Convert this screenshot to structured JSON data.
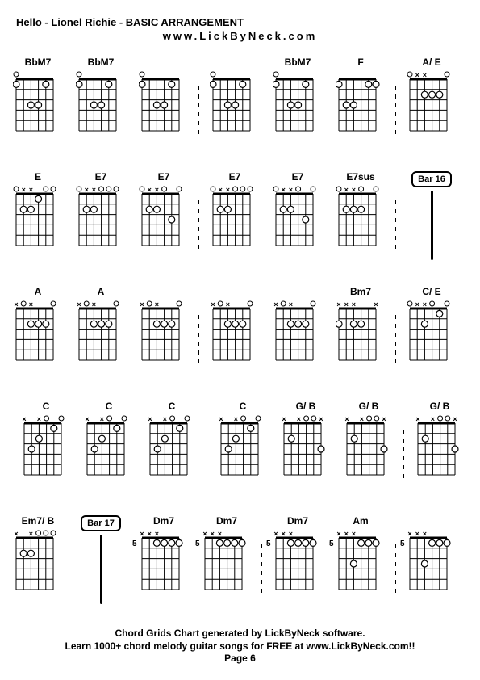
{
  "title": "Hello - Lionel Richie  - BASIC ARRANGEMENT",
  "subtitle": "www.LickByNeck.com",
  "footer_line1": "Chord Grids Chart generated by LickByNeck software.",
  "footer_line2": "Learn 1000+ chord melody guitar songs for FREE at www.LickByNeck.com!!",
  "footer_page": "Page 6",
  "fretboard": {
    "strings": 6,
    "frets": 5,
    "width": 54,
    "height": 80,
    "line_color": "#000000",
    "dot_fill": "#ffffff",
    "dot_stroke": "#000000",
    "x_mark": "×"
  },
  "rows": [
    {
      "cells": [
        {
          "type": "chord",
          "label": "BbM7",
          "top": [
            "o",
            "",
            "",
            "",
            "",
            ""
          ],
          "dots": [
            [
              1,
              1
            ],
            [
              3,
              3
            ],
            [
              3,
              4
            ],
            [
              1,
              5
            ]
          ]
        },
        {
          "type": "chord",
          "label": "BbM7",
          "top": [
            "o",
            "",
            "",
            "",
            "",
            ""
          ],
          "dots": [
            [
              1,
              1
            ],
            [
              3,
              3
            ],
            [
              3,
              4
            ],
            [
              1,
              5
            ]
          ]
        },
        {
          "type": "chord",
          "label": "",
          "top": [
            "o",
            "",
            "",
            "",
            "",
            ""
          ],
          "dots": [
            [
              1,
              1
            ],
            [
              3,
              3
            ],
            [
              3,
              4
            ],
            [
              1,
              5
            ]
          ]
        },
        {
          "type": "sep"
        },
        {
          "type": "chord",
          "label": "",
          "top": [
            "o",
            "",
            "",
            "",
            "",
            ""
          ],
          "dots": [
            [
              1,
              1
            ],
            [
              3,
              3
            ],
            [
              3,
              4
            ],
            [
              1,
              5
            ]
          ]
        },
        {
          "type": "chord",
          "label": "BbM7",
          "top": [
            "o",
            "",
            "",
            "",
            "",
            ""
          ],
          "dots": [
            [
              1,
              1
            ],
            [
              3,
              3
            ],
            [
              3,
              4
            ],
            [
              1,
              5
            ]
          ]
        },
        {
          "type": "chord",
          "label": "F",
          "top": [
            "",
            "",
            "",
            "",
            "",
            ""
          ],
          "dots": [
            [
              1,
              1
            ],
            [
              3,
              2
            ],
            [
              3,
              3
            ],
            [
              1,
              5
            ],
            [
              1,
              6
            ]
          ]
        },
        {
          "type": "sep"
        },
        {
          "type": "chord",
          "label": "A/ E",
          "top": [
            "o",
            "x",
            "x",
            "",
            "",
            "o"
          ],
          "dots": [
            [
              2,
              3
            ],
            [
              2,
              4
            ],
            [
              2,
              5
            ]
          ]
        }
      ]
    },
    {
      "cells": [
        {
          "type": "chord",
          "label": "E",
          "top": [
            "o",
            "x",
            "x",
            "",
            "o",
            "o"
          ],
          "dots": [
            [
              2,
              2
            ],
            [
              2,
              3
            ],
            [
              1,
              4
            ]
          ]
        },
        {
          "type": "chord",
          "label": "E7",
          "top": [
            "o",
            "x",
            "x",
            "o",
            "o",
            "o"
          ],
          "dots": [
            [
              2,
              2
            ],
            [
              2,
              3
            ]
          ]
        },
        {
          "type": "chord",
          "label": "E7",
          "top": [
            "o",
            "x",
            "x",
            "o",
            "",
            "o"
          ],
          "dots": [
            [
              2,
              2
            ],
            [
              2,
              3
            ],
            [
              3,
              5
            ]
          ]
        },
        {
          "type": "sep"
        },
        {
          "type": "chord",
          "label": "E7",
          "top": [
            "o",
            "x",
            "x",
            "o",
            "o",
            "o"
          ],
          "dots": [
            [
              2,
              2
            ],
            [
              2,
              3
            ]
          ]
        },
        {
          "type": "chord",
          "label": "E7",
          "top": [
            "o",
            "x",
            "x",
            "o",
            "",
            "o"
          ],
          "dots": [
            [
              2,
              2
            ],
            [
              2,
              3
            ],
            [
              3,
              5
            ]
          ]
        },
        {
          "type": "chord",
          "label": "E7sus",
          "top": [
            "o",
            "x",
            "x",
            "o",
            "",
            "o"
          ],
          "dots": [
            [
              2,
              2
            ],
            [
              2,
              3
            ],
            [
              2,
              4
            ]
          ]
        },
        {
          "type": "sep"
        },
        {
          "type": "bar",
          "label": "Bar 16"
        }
      ]
    },
    {
      "cells": [
        {
          "type": "chord",
          "label": "A",
          "top": [
            "x",
            "o",
            "x",
            "",
            "",
            "o"
          ],
          "dots": [
            [
              2,
              3
            ],
            [
              2,
              4
            ],
            [
              2,
              5
            ]
          ]
        },
        {
          "type": "chord",
          "label": "A",
          "top": [
            "x",
            "o",
            "x",
            "",
            "",
            "o"
          ],
          "dots": [
            [
              2,
              3
            ],
            [
              2,
              4
            ],
            [
              2,
              5
            ]
          ]
        },
        {
          "type": "chord",
          "label": "",
          "top": [
            "x",
            "o",
            "x",
            "",
            "",
            "o"
          ],
          "dots": [
            [
              2,
              3
            ],
            [
              2,
              4
            ],
            [
              2,
              5
            ]
          ]
        },
        {
          "type": "sep"
        },
        {
          "type": "chord",
          "label": "",
          "top": [
            "x",
            "o",
            "x",
            "",
            "",
            "o"
          ],
          "dots": [
            [
              2,
              3
            ],
            [
              2,
              4
            ],
            [
              2,
              5
            ]
          ]
        },
        {
          "type": "chord",
          "label": "",
          "top": [
            "x",
            "o",
            "x",
            "",
            "",
            "o"
          ],
          "dots": [
            [
              2,
              3
            ],
            [
              2,
              4
            ],
            [
              2,
              5
            ]
          ]
        },
        {
          "type": "chord",
          "label": "Bm7",
          "top": [
            "x",
            "x",
            "x",
            "",
            "",
            "x"
          ],
          "dots": [
            [
              2,
              1
            ],
            [
              2,
              3
            ],
            [
              2,
              4
            ]
          ]
        },
        {
          "type": "sep"
        },
        {
          "type": "chord",
          "label": "C/ E",
          "top": [
            "o",
            "x",
            "x",
            "o",
            "",
            "o"
          ],
          "dots": [
            [
              2,
              3
            ],
            [
              1,
              5
            ]
          ]
        }
      ]
    },
    {
      "cells": [
        {
          "type": "sep"
        },
        {
          "type": "chord",
          "label": "C",
          "top": [
            "x",
            "",
            "x",
            "o",
            "",
            "o"
          ],
          "dots": [
            [
              3,
              2
            ],
            [
              2,
              3
            ],
            [
              1,
              5
            ]
          ]
        },
        {
          "type": "chord",
          "label": "C",
          "top": [
            "x",
            "",
            "x",
            "o",
            "",
            "o"
          ],
          "dots": [
            [
              3,
              2
            ],
            [
              2,
              3
            ],
            [
              1,
              5
            ]
          ]
        },
        {
          "type": "chord",
          "label": "C",
          "top": [
            "x",
            "",
            "x",
            "o",
            "",
            "o"
          ],
          "dots": [
            [
              3,
              2
            ],
            [
              2,
              3
            ],
            [
              1,
              5
            ]
          ]
        },
        {
          "type": "sep"
        },
        {
          "type": "chord",
          "label": "C",
          "top": [
            "x",
            "",
            "x",
            "o",
            "",
            "o"
          ],
          "dots": [
            [
              3,
              2
            ],
            [
              2,
              3
            ],
            [
              1,
              5
            ]
          ]
        },
        {
          "type": "chord",
          "label": "G/ B",
          "top": [
            "x",
            "",
            "x",
            "o",
            "o",
            "x"
          ],
          "dots": [
            [
              2,
              2
            ],
            [
              3,
              6
            ]
          ]
        },
        {
          "type": "chord",
          "label": "G/ B",
          "top": [
            "x",
            "",
            "x",
            "o",
            "o",
            "x"
          ],
          "dots": [
            [
              2,
              2
            ],
            [
              3,
              6
            ]
          ]
        },
        {
          "type": "sep"
        },
        {
          "type": "chord",
          "label": "G/ B",
          "top": [
            "x",
            "",
            "x",
            "o",
            "o",
            "x"
          ],
          "dots": [
            [
              2,
              2
            ],
            [
              3,
              6
            ]
          ]
        }
      ]
    },
    {
      "cells": [
        {
          "type": "chord",
          "label": "Em7/ B",
          "top": [
            "x",
            "",
            "x",
            "o",
            "o",
            "o"
          ],
          "dots": [
            [
              2,
              2
            ],
            [
              2,
              3
            ]
          ]
        },
        {
          "type": "bar",
          "label": "Bar 17"
        },
        {
          "type": "chord",
          "label": "Dm7",
          "top": [
            "x",
            "x",
            "x",
            "",
            "",
            ""
          ],
          "dots": [
            [
              1,
              3
            ],
            [
              1,
              4
            ],
            [
              1,
              5
            ],
            [
              1,
              6
            ]
          ],
          "fret": "5"
        },
        {
          "type": "chord",
          "label": "Dm7",
          "top": [
            "x",
            "x",
            "x",
            "",
            "",
            ""
          ],
          "dots": [
            [
              1,
              3
            ],
            [
              1,
              4
            ],
            [
              1,
              5
            ],
            [
              1,
              6
            ]
          ],
          "fret": "5"
        },
        {
          "type": "sep"
        },
        {
          "type": "chord",
          "label": "Dm7",
          "top": [
            "x",
            "x",
            "x",
            "",
            "",
            ""
          ],
          "dots": [
            [
              1,
              3
            ],
            [
              1,
              4
            ],
            [
              1,
              5
            ],
            [
              1,
              6
            ]
          ],
          "fret": "5"
        },
        {
          "type": "chord",
          "label": "Am",
          "top": [
            "x",
            "x",
            "x",
            "",
            "",
            ""
          ],
          "dots": [
            [
              3,
              3
            ],
            [
              1,
              4
            ],
            [
              1,
              5
            ],
            [
              1,
              6
            ]
          ],
          "fret": "5"
        },
        {
          "type": "sep"
        },
        {
          "type": "chord",
          "label": "",
          "top": [
            "x",
            "x",
            "x",
            "",
            "",
            ""
          ],
          "dots": [
            [
              3,
              3
            ],
            [
              1,
              4
            ],
            [
              1,
              5
            ],
            [
              1,
              6
            ]
          ],
          "fret": "5"
        }
      ]
    }
  ]
}
